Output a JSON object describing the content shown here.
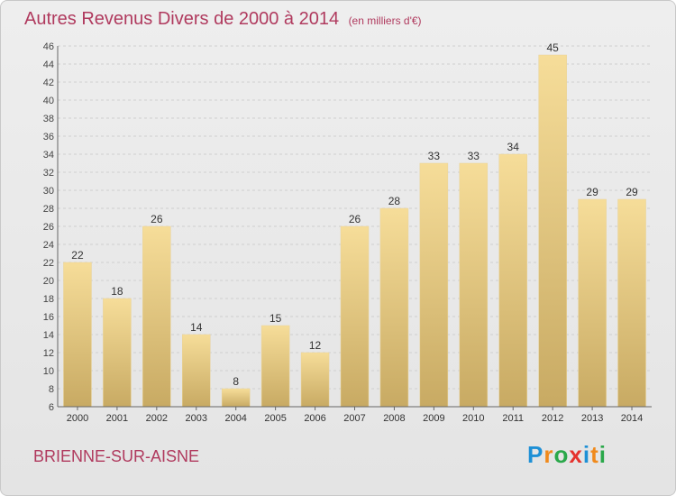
{
  "title": "Autres Revenus Divers de 2000 à 2014",
  "subtitle": "(en milliers d'€)",
  "city": "BRIENNE-SUR-AISNE",
  "logo": {
    "letters": [
      {
        "ch": "P",
        "color": "#1e90d6"
      },
      {
        "ch": "r",
        "color": "#f08a1c"
      },
      {
        "ch": "o",
        "color": "#2aa84a"
      },
      {
        "ch": "x",
        "color": "#e5322d"
      },
      {
        "ch": "i",
        "color": "#1e90d6"
      },
      {
        "ch": "t",
        "color": "#f08a1c"
      },
      {
        "ch": "i",
        "color": "#2aa84a"
      }
    ]
  },
  "colors": {
    "title": "#b03a5e",
    "bar_top": "#f6dd99",
    "bar_bottom": "#c8aa63",
    "grid": "#cfcfcf"
  },
  "chart_data": {
    "type": "bar",
    "title": "Autres Revenus Divers de 2000 à 2014",
    "subtitle": "(en milliers d'€)",
    "categories": [
      "2000",
      "2001",
      "2002",
      "2003",
      "2004",
      "2005",
      "2006",
      "2007",
      "2008",
      "2009",
      "2010",
      "2011",
      "2012",
      "2013",
      "2014"
    ],
    "values": [
      22,
      18,
      26,
      14,
      8,
      15,
      12,
      26,
      28,
      33,
      33,
      34,
      45,
      29,
      29
    ],
    "ylim": [
      6,
      46
    ],
    "yticks": [
      6,
      8,
      10,
      12,
      14,
      16,
      18,
      20,
      22,
      24,
      26,
      28,
      30,
      32,
      34,
      36,
      38,
      40,
      42,
      44,
      46
    ],
    "grid": true,
    "data_labels": true
  }
}
